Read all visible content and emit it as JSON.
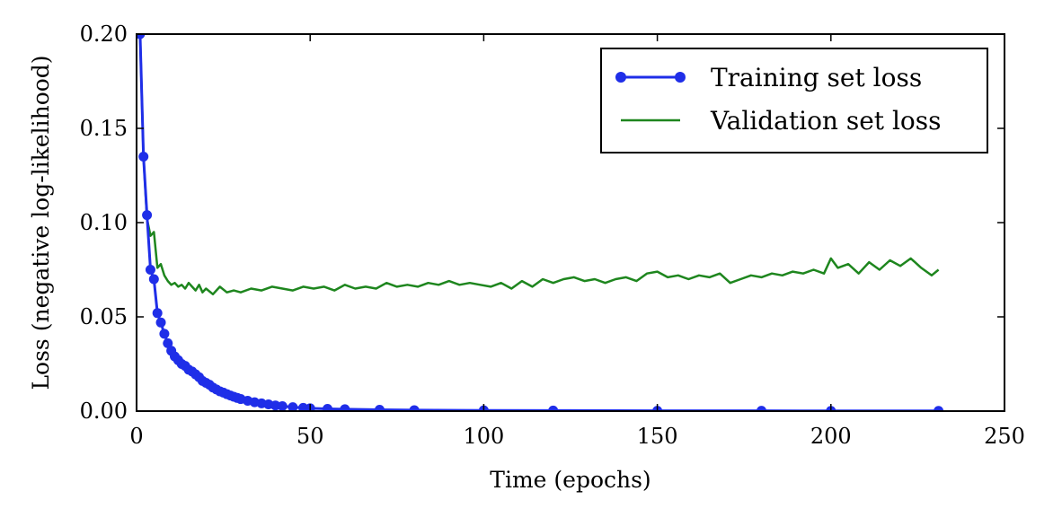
{
  "chart_data": {
    "type": "line",
    "title": "",
    "xlabel": "Time (epochs)",
    "ylabel": "Loss (negative log-likelihood)",
    "xlim": [
      0,
      250
    ],
    "ylim": [
      0.0,
      0.2
    ],
    "xticks": [
      "0",
      "50",
      "100",
      "150",
      "200",
      "250"
    ],
    "yticks": [
      "0.00",
      "0.05",
      "0.10",
      "0.15",
      "0.20"
    ],
    "grid": false,
    "legend_position": "top-right",
    "series": [
      {
        "name": "Training set loss",
        "color": "#1f2ee8",
        "marker": "circle",
        "x": [
          1,
          2,
          3,
          4,
          5,
          6,
          7,
          8,
          9,
          10,
          11,
          12,
          13,
          14,
          15,
          16,
          17,
          18,
          19,
          20,
          21,
          22,
          23,
          24,
          25,
          26,
          27,
          28,
          29,
          30,
          32,
          34,
          36,
          38,
          40,
          42,
          45,
          48,
          50,
          55,
          60,
          70,
          80,
          100,
          120,
          150,
          180,
          200,
          231
        ],
        "y": [
          0.2,
          0.135,
          0.104,
          0.075,
          0.07,
          0.052,
          0.047,
          0.041,
          0.036,
          0.032,
          0.029,
          0.027,
          0.025,
          0.024,
          0.022,
          0.021,
          0.0195,
          0.018,
          0.016,
          0.015,
          0.014,
          0.0125,
          0.0115,
          0.0105,
          0.0098,
          0.009,
          0.0083,
          0.0076,
          0.007,
          0.0064,
          0.0055,
          0.0047,
          0.0041,
          0.0036,
          0.003,
          0.0026,
          0.0021,
          0.0017,
          0.0015,
          0.0012,
          0.001,
          0.0007,
          0.0005,
          0.0004,
          0.0003,
          0.0002,
          0.0002,
          0.0001,
          0.0001
        ]
      },
      {
        "name": "Validation set loss",
        "color": "#1e861e",
        "marker": "none",
        "x": [
          1,
          2,
          3,
          4,
          5,
          6,
          7,
          8,
          9,
          10,
          11,
          12,
          13,
          14,
          15,
          16,
          17,
          18,
          19,
          20,
          22,
          24,
          26,
          28,
          30,
          33,
          36,
          39,
          42,
          45,
          48,
          51,
          54,
          57,
          60,
          63,
          66,
          69,
          72,
          75,
          78,
          81,
          84,
          87,
          90,
          93,
          96,
          99,
          102,
          105,
          108,
          111,
          114,
          117,
          120,
          123,
          126,
          129,
          132,
          135,
          138,
          141,
          144,
          147,
          150,
          153,
          156,
          159,
          162,
          165,
          168,
          171,
          174,
          177,
          180,
          183,
          186,
          189,
          192,
          195,
          198,
          200,
          202,
          205,
          208,
          211,
          214,
          217,
          220,
          223,
          226,
          229,
          231
        ],
        "y": [
          0.2,
          0.135,
          0.102,
          0.093,
          0.095,
          0.076,
          0.078,
          0.072,
          0.069,
          0.067,
          0.068,
          0.066,
          0.067,
          0.065,
          0.068,
          0.066,
          0.064,
          0.067,
          0.063,
          0.065,
          0.062,
          0.066,
          0.063,
          0.064,
          0.063,
          0.065,
          0.064,
          0.066,
          0.065,
          0.064,
          0.066,
          0.065,
          0.066,
          0.064,
          0.067,
          0.065,
          0.066,
          0.065,
          0.068,
          0.066,
          0.067,
          0.066,
          0.068,
          0.067,
          0.069,
          0.067,
          0.068,
          0.067,
          0.066,
          0.068,
          0.065,
          0.069,
          0.066,
          0.07,
          0.068,
          0.07,
          0.071,
          0.069,
          0.07,
          0.068,
          0.07,
          0.071,
          0.069,
          0.073,
          0.074,
          0.071,
          0.072,
          0.07,
          0.072,
          0.071,
          0.073,
          0.068,
          0.07,
          0.072,
          0.071,
          0.073,
          0.072,
          0.074,
          0.073,
          0.075,
          0.073,
          0.081,
          0.076,
          0.078,
          0.073,
          0.079,
          0.075,
          0.08,
          0.077,
          0.081,
          0.076,
          0.072,
          0.075
        ]
      }
    ]
  }
}
